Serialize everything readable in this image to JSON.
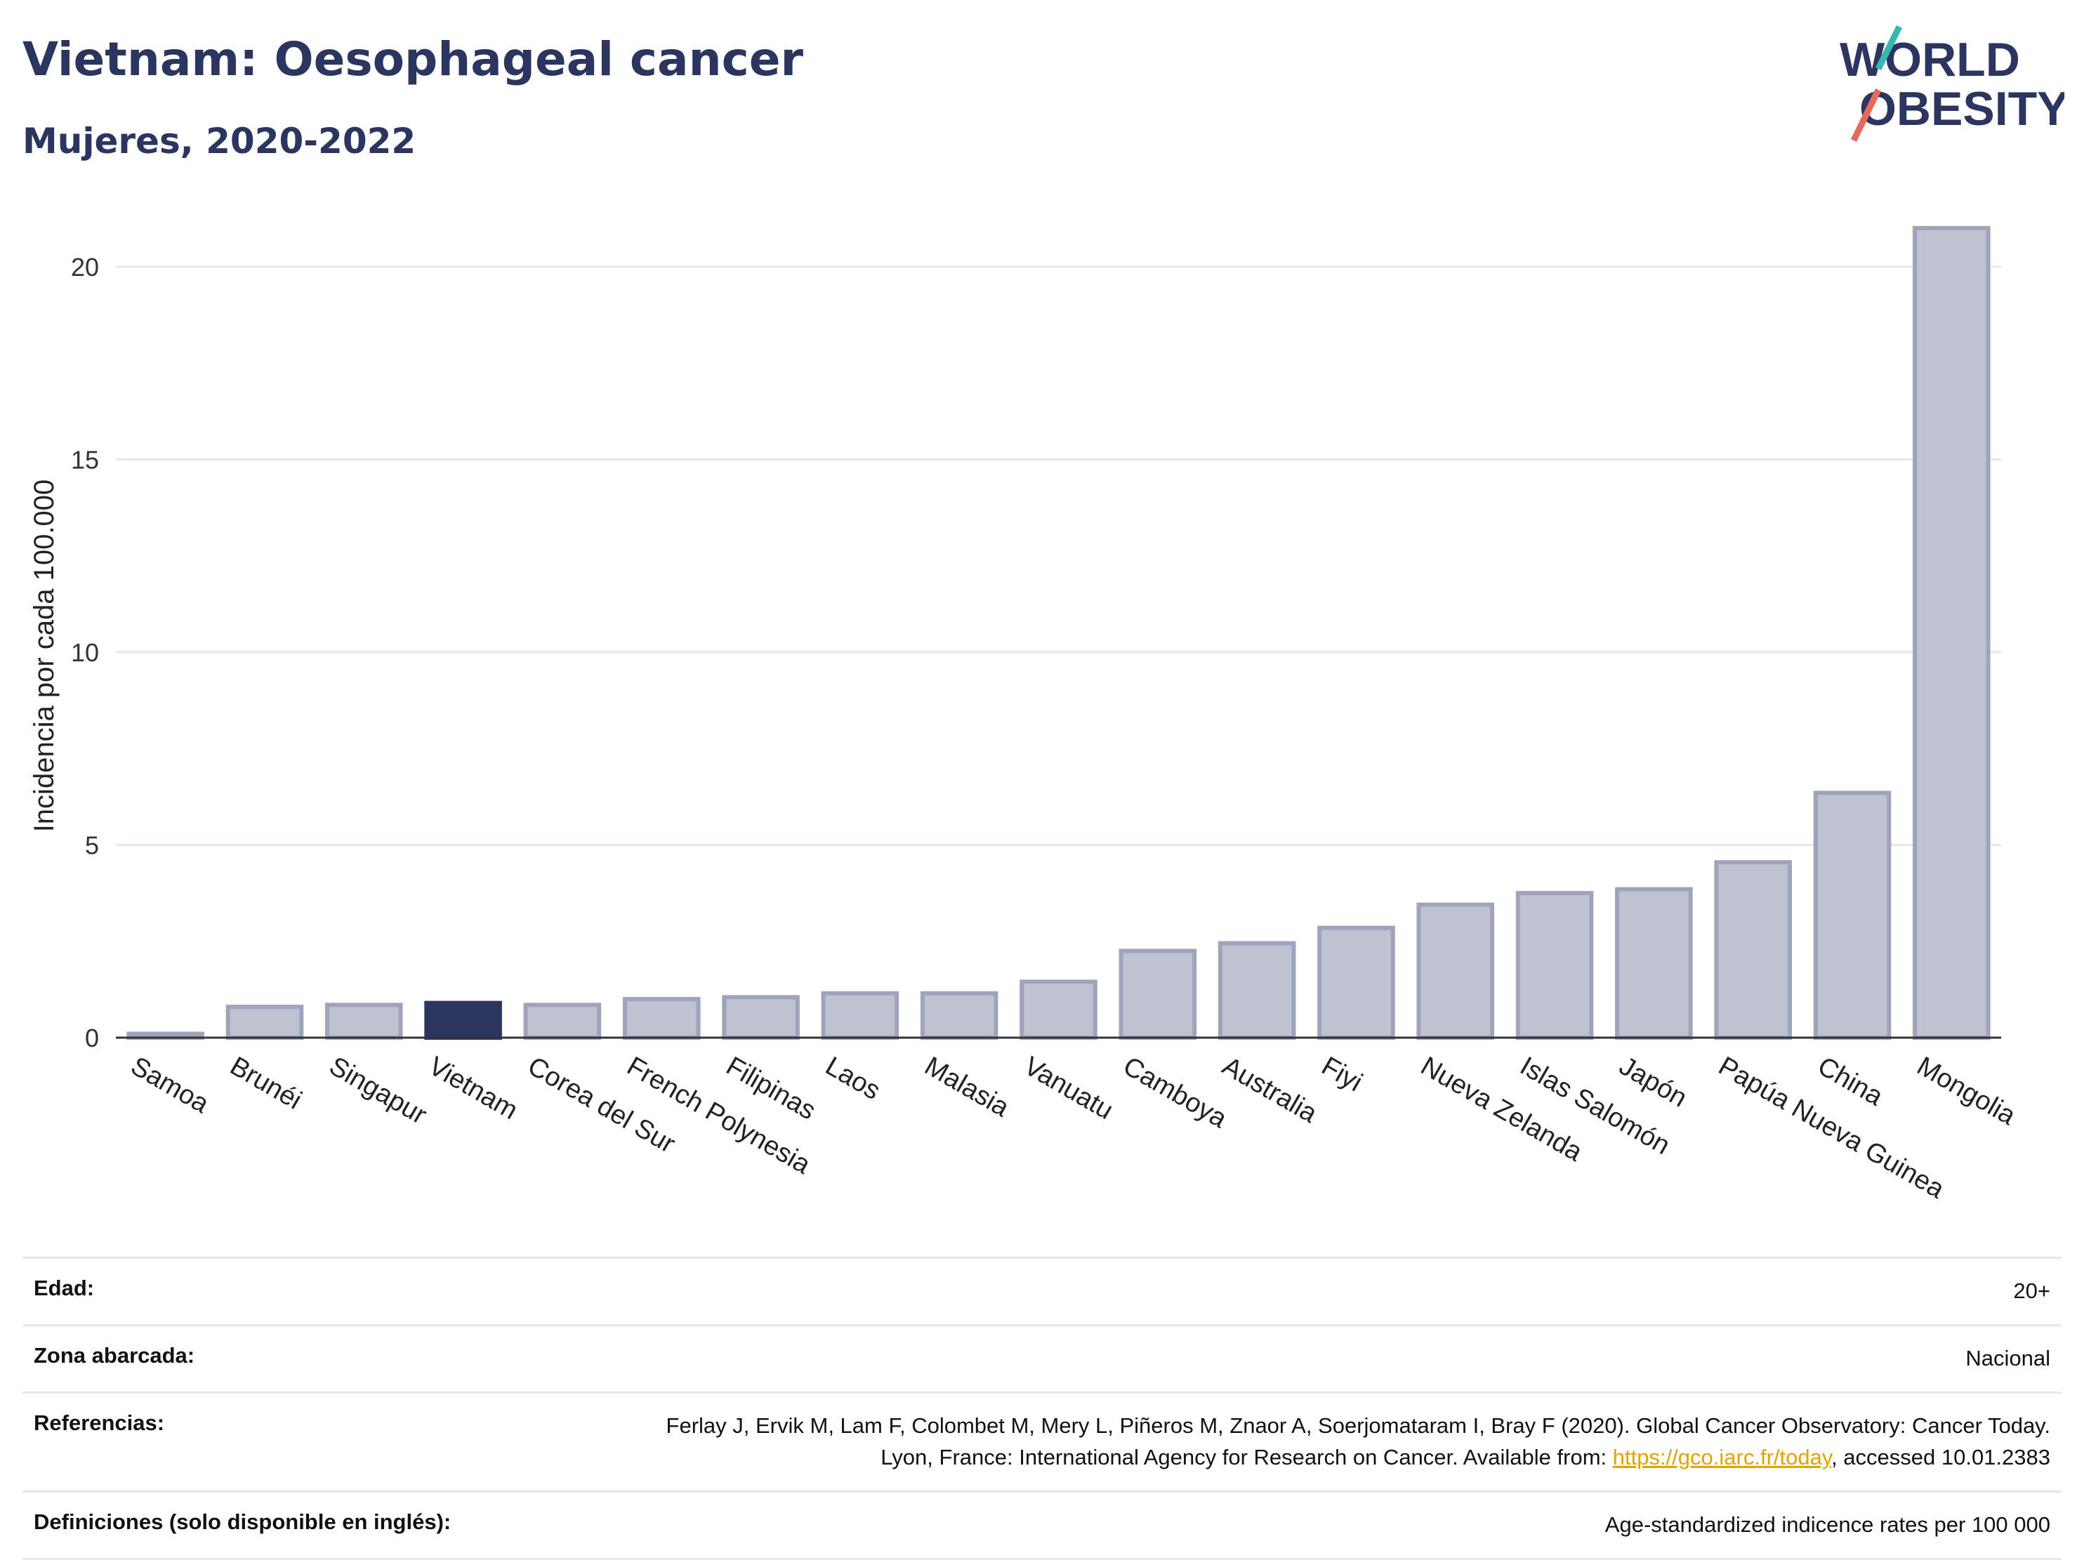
{
  "header": {
    "title": "Vietnam: Oesophageal cancer",
    "subtitle": "Mujeres, 2020-2022",
    "logo_line1": "WORLD",
    "logo_line2": "OBESITY"
  },
  "colors": {
    "highlight": "#2a3560",
    "bar_fill": "#bfc3d1",
    "bar_stroke": "#9ea4bb",
    "grid": "#e6e8ef",
    "text": "#2a3560",
    "link": "#e0a300",
    "logo_teal": "#35b8b0",
    "logo_coral": "#e8685a"
  },
  "chart_data": {
    "type": "bar",
    "ylabel": "Incidencia por cada 100.000",
    "xlabel": "",
    "ylim": [
      0,
      22
    ],
    "yticks": [
      0,
      5,
      10,
      15,
      20
    ],
    "grid": true,
    "highlight": "Vietnam",
    "categories": [
      "Samoa",
      "Brunéi",
      "Singapur",
      "Vietnam",
      "Corea del Sur",
      "French Polynesia",
      "Filipinas",
      "Laos",
      "Malasia",
      "Vanuatu",
      "Camboya",
      "Australia",
      "Fiyi",
      "Nueva Zelanda",
      "Islas Salomón",
      "Japón",
      "Papúa Nueva Guinea",
      "China",
      "Mongolia"
    ],
    "values": [
      0.1,
      0.8,
      0.85,
      0.9,
      0.85,
      1.0,
      1.05,
      1.15,
      1.15,
      1.45,
      2.25,
      2.45,
      2.85,
      3.45,
      3.75,
      3.85,
      4.55,
      6.35,
      21.0
    ]
  },
  "meta": [
    {
      "label": "Edad:",
      "value": "20+"
    },
    {
      "label": "Zona abarcada:",
      "value": "Nacional"
    },
    {
      "label": "Referencias:",
      "value": "Ferlay J, Ervik M, Lam F, Colombet M, Mery L, Piñeros M, Znaor A, Soerjomataram I, Bray F (2020). Global Cancer Observatory: Cancer Today. Lyon, France: International Agency for Research on Cancer. Available from: ",
      "link": "https://gco.iarc.fr/today",
      "value_after": ", accessed 10.01.2383"
    },
    {
      "label": "Definiciones (solo disponible en inglés):",
      "value": "Age-standardized indicence rates per 100 000"
    }
  ]
}
